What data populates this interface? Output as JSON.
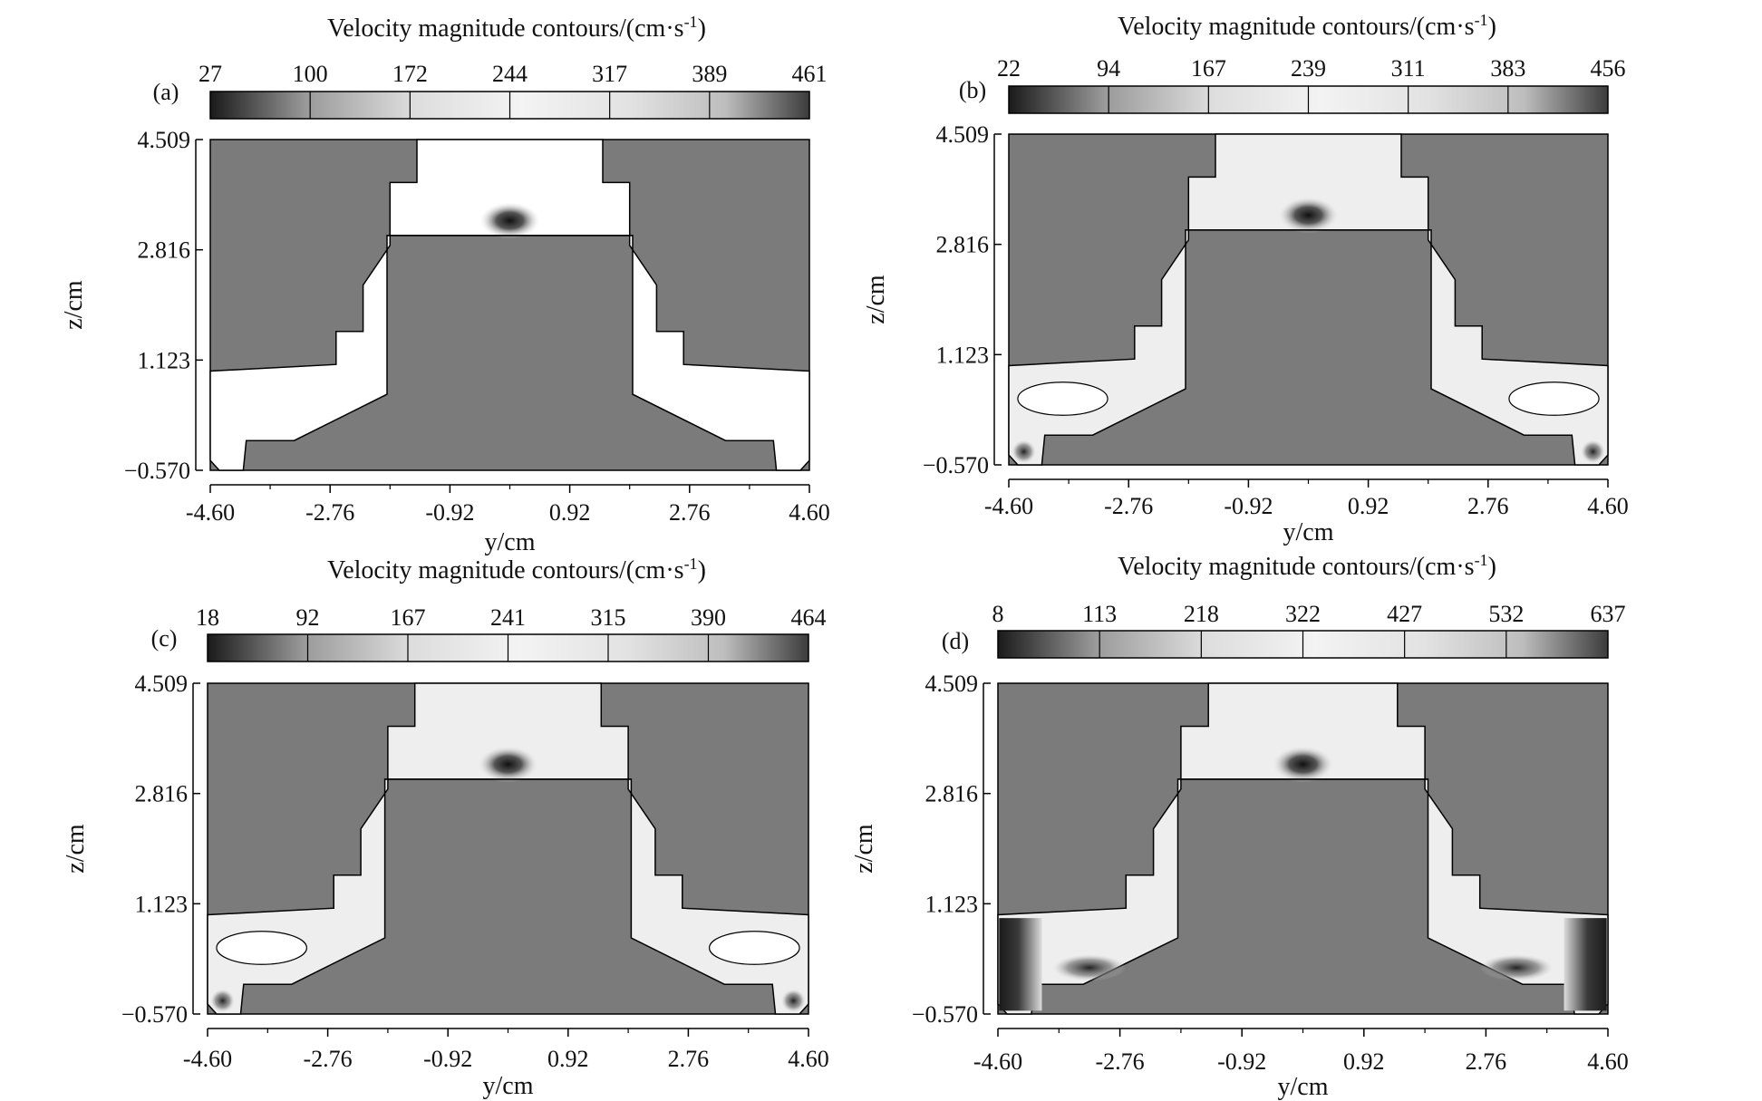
{
  "chart_data": [
    {
      "panel": "(a)",
      "type": "heatmap",
      "title": "Velocity magnitude contours/(cm·s",
      "title_sup": "-1",
      "title_end": ")",
      "colorbar_ticks": [
        "27",
        "100",
        "172",
        "244",
        "317",
        "389",
        "461"
      ],
      "colorbar_range": [
        27,
        461
      ],
      "ylabel": "z/cm",
      "xlabel": "y/cm",
      "y_ticks": [
        "4.509",
        "2.816",
        "1.123",
        "−0.570"
      ],
      "x_ticks": [
        "-4.60",
        "-2.76",
        "-0.92",
        "0.92",
        "2.76",
        "4.60"
      ],
      "xlim": [
        -4.6,
        4.6
      ],
      "ylim": [
        -0.57,
        4.509
      ]
    },
    {
      "panel": "(b)",
      "type": "heatmap",
      "title": "Velocity magnitude contours/(cm·s",
      "title_sup": "-1",
      "title_end": ")",
      "colorbar_ticks": [
        "22",
        "94",
        "167",
        "239",
        "311",
        "383",
        "456"
      ],
      "colorbar_range": [
        22,
        456
      ],
      "ylabel": "z/cm",
      "xlabel": "y/cm",
      "y_ticks": [
        "4.509",
        "2.816",
        "1.123",
        "−0.570"
      ],
      "x_ticks": [
        "-4.60",
        "-2.76",
        "-0.92",
        "0.92",
        "2.76",
        "4.60"
      ],
      "xlim": [
        -4.6,
        4.6
      ],
      "ylim": [
        -0.57,
        4.509
      ]
    },
    {
      "panel": "(c)",
      "type": "heatmap",
      "title": "Velocity magnitude contours/(cm·s",
      "title_sup": "-1",
      "title_end": ")",
      "colorbar_ticks": [
        "18",
        "92",
        "167",
        "241",
        "315",
        "390",
        "464"
      ],
      "colorbar_range": [
        18,
        464
      ],
      "ylabel": "z/cm",
      "xlabel": "y/cm",
      "y_ticks": [
        "4.509",
        "2.816",
        "1.123",
        "−0.570"
      ],
      "x_ticks": [
        "-4.60",
        "-2.76",
        "-0.92",
        "0.92",
        "2.76",
        "4.60"
      ],
      "xlim": [
        -4.6,
        4.6
      ],
      "ylim": [
        -0.57,
        4.509
      ]
    },
    {
      "panel": "(d)",
      "type": "heatmap",
      "title": "Velocity magnitude contours/(cm·s",
      "title_sup": "-1",
      "title_end": ")",
      "colorbar_ticks": [
        "8",
        "113",
        "218",
        "322",
        "427",
        "532",
        "637"
      ],
      "colorbar_range": [
        8,
        637
      ],
      "ylabel": "z/cm",
      "xlabel": "y/cm",
      "y_ticks": [
        "4.509",
        "2.816",
        "1.123",
        "−0.570"
      ],
      "x_ticks": [
        "-4.60",
        "-2.76",
        "-0.92",
        "0.92",
        "2.76",
        "4.60"
      ],
      "xlim": [
        -4.6,
        4.6
      ],
      "ylim": [
        -0.57,
        4.509
      ]
    }
  ],
  "colors": {
    "solid_region": "#7b7b7b",
    "fluid_light": "#eeeeee",
    "fluid_white": "#ffffff",
    "fluid_dark": "#1e1e1e",
    "outline": "#000000"
  }
}
